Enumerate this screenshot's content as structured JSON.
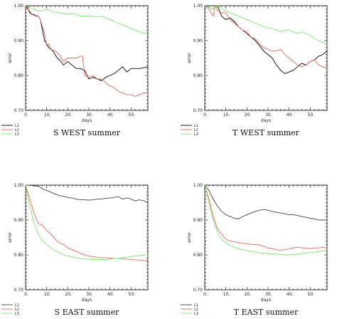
{
  "chart_data": [
    {
      "type": "line",
      "title": "S WEST summer",
      "xlabel": "days",
      "ylabel": "error",
      "xlim": [
        0,
        58
      ],
      "ylim": [
        0.7,
        1.0
      ],
      "x_ticks": [
        0,
        10,
        20,
        30,
        40,
        50
      ],
      "x_tick_labels": [
        "0.",
        "10.",
        "20.",
        "30.",
        "40.",
        "50."
      ],
      "y_ticks": [
        0.7,
        0.8,
        0.9,
        1.0
      ],
      "y_tick_labels": [
        "0.70",
        "0.80",
        "0.90",
        "1.00"
      ],
      "legend_position": "below-left",
      "series": [
        {
          "name": "L1",
          "color": "#000000",
          "x": [
            0,
            1,
            2,
            3,
            4,
            5,
            6,
            7,
            8,
            9,
            10,
            11,
            12,
            13,
            14,
            15,
            16,
            18,
            20,
            22,
            24,
            26,
            28,
            30,
            32,
            34,
            36,
            38,
            40,
            42,
            44,
            46,
            48,
            50,
            52,
            54,
            56,
            58
          ],
          "y": [
            1.0,
            0.995,
            0.98,
            0.975,
            0.975,
            0.97,
            0.97,
            0.96,
            0.93,
            0.9,
            0.89,
            0.88,
            0.875,
            0.87,
            0.86,
            0.85,
            0.845,
            0.83,
            0.84,
            0.83,
            0.82,
            0.82,
            0.815,
            0.79,
            0.795,
            0.79,
            0.785,
            0.795,
            0.8,
            0.805,
            0.815,
            0.825,
            0.81,
            0.82,
            0.82,
            0.82,
            0.822,
            0.825
          ]
        },
        {
          "name": "L2",
          "color": "#ee6655",
          "x": [
            0,
            1,
            2,
            3,
            4,
            5,
            6,
            7,
            8,
            9,
            10,
            11,
            12,
            14,
            16,
            18,
            20,
            22,
            24,
            26,
            27,
            28,
            30,
            32,
            34,
            36,
            38,
            40,
            42,
            44,
            46,
            48,
            50,
            52,
            54,
            56,
            58
          ],
          "y": [
            1.0,
            0.99,
            0.985,
            0.975,
            0.972,
            0.972,
            0.97,
            0.96,
            0.94,
            0.92,
            0.885,
            0.89,
            0.875,
            0.87,
            0.86,
            0.84,
            0.85,
            0.85,
            0.85,
            0.855,
            0.855,
            0.8,
            0.795,
            0.8,
            0.79,
            0.79,
            0.78,
            0.77,
            0.765,
            0.755,
            0.75,
            0.745,
            0.745,
            0.74,
            0.745,
            0.75,
            0.75
          ]
        },
        {
          "name": "L3",
          "color": "#77ee66",
          "x": [
            0,
            2,
            4,
            6,
            8,
            10,
            12,
            14,
            16,
            18,
            20,
            22,
            24,
            26,
            28,
            30,
            32,
            34,
            36,
            38,
            40,
            42,
            44,
            46,
            48,
            50,
            52,
            54,
            56,
            58
          ],
          "y": [
            1.0,
            0.995,
            0.99,
            0.985,
            0.985,
            0.99,
            0.985,
            0.98,
            0.98,
            0.978,
            0.975,
            0.978,
            0.975,
            0.97,
            0.97,
            0.97,
            0.97,
            0.968,
            0.97,
            0.965,
            0.96,
            0.955,
            0.95,
            0.945,
            0.94,
            0.935,
            0.93,
            0.925,
            0.92,
            0.925
          ]
        }
      ]
    },
    {
      "type": "line",
      "title": "T WEST summer",
      "xlabel": "days",
      "ylabel": "error",
      "xlim": [
        0,
        58
      ],
      "ylim": [
        0.7,
        1.0
      ],
      "x_ticks": [
        0,
        10,
        20,
        30,
        40,
        50
      ],
      "x_tick_labels": [
        "0.",
        "10.",
        "20.",
        "30.",
        "40.",
        "50."
      ],
      "y_ticks": [
        0.7,
        0.8,
        0.9,
        1.0
      ],
      "y_tick_labels": [
        "0.70",
        "0.80",
        "0.90",
        "1.00"
      ],
      "legend_position": "below-left",
      "series": [
        {
          "name": "L1",
          "color": "#000000",
          "x": [
            0,
            2,
            4,
            6,
            8,
            10,
            12,
            14,
            16,
            18,
            20,
            22,
            24,
            26,
            28,
            30,
            32,
            34,
            36,
            38,
            40,
            42,
            44,
            46,
            48,
            50,
            52,
            54,
            56,
            58
          ],
          "y": [
            1.0,
            0.995,
            0.99,
            1.0,
            0.97,
            0.96,
            0.965,
            0.955,
            0.94,
            0.93,
            0.92,
            0.91,
            0.9,
            0.885,
            0.87,
            0.86,
            0.85,
            0.83,
            0.815,
            0.805,
            0.81,
            0.815,
            0.825,
            0.835,
            0.83,
            0.84,
            0.845,
            0.855,
            0.86,
            0.87
          ]
        },
        {
          "name": "L2",
          "color": "#ee6655",
          "x": [
            0,
            2,
            4,
            5,
            6,
            8,
            10,
            12,
            14,
            16,
            18,
            20,
            22,
            24,
            26,
            28,
            30,
            32,
            34,
            36,
            38,
            40,
            42,
            44,
            46,
            48,
            50,
            52,
            54,
            56,
            58
          ],
          "y": [
            1.0,
            0.99,
            0.97,
            1.0,
            0.985,
            0.98,
            0.98,
            0.96,
            0.95,
            0.94,
            0.93,
            0.925,
            0.91,
            0.905,
            0.89,
            0.88,
            0.875,
            0.87,
            0.87,
            0.875,
            0.86,
            0.85,
            0.84,
            0.83,
            0.825,
            0.83,
            0.84,
            0.845,
            0.83,
            0.825,
            0.82
          ]
        },
        {
          "name": "L3",
          "color": "#77ee66",
          "x": [
            0,
            2,
            4,
            6,
            8,
            10,
            12,
            14,
            16,
            18,
            20,
            22,
            24,
            26,
            28,
            30,
            32,
            34,
            36,
            38,
            40,
            42,
            44,
            46,
            48,
            50,
            52,
            54,
            56,
            58
          ],
          "y": [
            1.0,
            0.995,
            0.99,
            1.0,
            0.99,
            0.985,
            0.98,
            0.975,
            0.97,
            0.965,
            0.96,
            0.955,
            0.95,
            0.945,
            0.94,
            0.935,
            0.935,
            0.93,
            0.925,
            0.93,
            0.93,
            0.925,
            0.92,
            0.925,
            0.92,
            0.915,
            0.905,
            0.9,
            0.895,
            0.89
          ]
        }
      ]
    },
    {
      "type": "line",
      "title": "S EAST summer",
      "xlabel": "days",
      "ylabel": "error",
      "xlim": [
        0,
        58
      ],
      "ylim": [
        0.7,
        1.0
      ],
      "x_ticks": [
        0,
        10,
        20,
        30,
        40,
        50
      ],
      "x_tick_labels": [
        "0.",
        "10.",
        "20.",
        "30.",
        "40.",
        "50."
      ],
      "y_ticks": [
        0.7,
        0.8,
        0.9,
        1.0
      ],
      "y_tick_labels": [
        "0.70",
        "0.80",
        "0.90",
        "1.00"
      ],
      "legend_position": "below-left",
      "series": [
        {
          "name": "L1",
          "color": "#444444",
          "x": [
            0,
            2,
            4,
            6,
            8,
            10,
            12,
            14,
            16,
            18,
            20,
            22,
            24,
            26,
            28,
            30,
            32,
            34,
            36,
            38,
            40,
            42,
            44,
            46,
            48,
            50,
            52,
            54,
            56,
            58
          ],
          "y": [
            1.0,
            1.0,
            0.998,
            0.997,
            0.99,
            0.985,
            0.98,
            0.975,
            0.97,
            0.968,
            0.965,
            0.963,
            0.96,
            0.958,
            0.958,
            0.957,
            0.958,
            0.96,
            0.96,
            0.962,
            0.963,
            0.965,
            0.967,
            0.96,
            0.963,
            0.96,
            0.955,
            0.958,
            0.955,
            0.95
          ]
        },
        {
          "name": "L2",
          "color": "#ee6655",
          "x": [
            0,
            2,
            4,
            6,
            8,
            10,
            12,
            14,
            16,
            18,
            20,
            22,
            24,
            26,
            28,
            30,
            32,
            34,
            36,
            38,
            40,
            42,
            44,
            46,
            48,
            50,
            52,
            54,
            56,
            58
          ],
          "y": [
            1.0,
            0.96,
            0.92,
            0.89,
            0.885,
            0.87,
            0.86,
            0.845,
            0.835,
            0.83,
            0.82,
            0.815,
            0.81,
            0.805,
            0.8,
            0.797,
            0.795,
            0.793,
            0.792,
            0.792,
            0.791,
            0.79,
            0.79,
            0.789,
            0.788,
            0.787,
            0.786,
            0.785,
            0.784,
            0.783
          ]
        },
        {
          "name": "L3",
          "color": "#77ee66",
          "x": [
            0,
            2,
            4,
            6,
            8,
            10,
            12,
            14,
            16,
            18,
            20,
            22,
            24,
            26,
            28,
            30,
            32,
            34,
            36,
            38,
            40,
            42,
            44,
            46,
            48,
            50,
            52,
            54,
            56,
            58
          ],
          "y": [
            1.0,
            0.94,
            0.89,
            0.86,
            0.84,
            0.83,
            0.82,
            0.812,
            0.806,
            0.8,
            0.797,
            0.795,
            0.792,
            0.79,
            0.789,
            0.788,
            0.787,
            0.787,
            0.787,
            0.787,
            0.788,
            0.79,
            0.79,
            0.792,
            0.794,
            0.795,
            0.797,
            0.798,
            0.8,
            0.8
          ]
        }
      ]
    },
    {
      "type": "line",
      "title": "T EAST summer",
      "xlabel": "days",
      "ylabel": "error",
      "xlim": [
        0,
        58
      ],
      "ylim": [
        0.7,
        1.0
      ],
      "x_ticks": [
        0,
        10,
        20,
        30,
        40,
        50
      ],
      "x_tick_labels": [
        "0.",
        "10.",
        "20.",
        "30.",
        "40.",
        "50."
      ],
      "y_ticks": [
        0.7,
        0.8,
        0.9,
        1.0
      ],
      "y_tick_labels": [
        "0.70",
        "0.80",
        "0.90",
        "1.00"
      ],
      "legend_position": "below-left",
      "series": [
        {
          "name": "L1",
          "color": "#444444",
          "x": [
            0,
            2,
            4,
            6,
            8,
            10,
            12,
            14,
            16,
            18,
            20,
            22,
            24,
            26,
            28,
            30,
            32,
            34,
            36,
            38,
            40,
            42,
            44,
            46,
            48,
            50,
            52,
            54,
            56,
            58
          ],
          "y": [
            1.0,
            0.985,
            0.96,
            0.94,
            0.925,
            0.915,
            0.91,
            0.905,
            0.903,
            0.91,
            0.915,
            0.92,
            0.925,
            0.928,
            0.93,
            0.928,
            0.925,
            0.922,
            0.92,
            0.918,
            0.915,
            0.915,
            0.913,
            0.91,
            0.908,
            0.905,
            0.903,
            0.9,
            0.9,
            0.9
          ]
        },
        {
          "name": "L2",
          "color": "#ee6655",
          "x": [
            0,
            2,
            4,
            6,
            8,
            10,
            12,
            14,
            16,
            18,
            20,
            22,
            24,
            26,
            28,
            30,
            32,
            34,
            36,
            38,
            40,
            42,
            44,
            46,
            48,
            50,
            52,
            54,
            56,
            58
          ],
          "y": [
            1.0,
            0.96,
            0.91,
            0.875,
            0.86,
            0.845,
            0.84,
            0.838,
            0.835,
            0.833,
            0.832,
            0.83,
            0.83,
            0.828,
            0.825,
            0.82,
            0.818,
            0.815,
            0.813,
            0.815,
            0.818,
            0.82,
            0.822,
            0.82,
            0.82,
            0.818,
            0.82,
            0.82,
            0.822,
            0.82
          ]
        },
        {
          "name": "L3",
          "color": "#77ee66",
          "x": [
            0,
            2,
            4,
            6,
            8,
            10,
            12,
            14,
            16,
            18,
            20,
            22,
            24,
            26,
            28,
            30,
            32,
            34,
            36,
            38,
            40,
            42,
            44,
            46,
            48,
            50,
            52,
            54,
            56,
            58
          ],
          "y": [
            1.0,
            0.95,
            0.9,
            0.865,
            0.845,
            0.835,
            0.828,
            0.822,
            0.818,
            0.815,
            0.812,
            0.81,
            0.808,
            0.806,
            0.805,
            0.804,
            0.803,
            0.802,
            0.801,
            0.8,
            0.8,
            0.801,
            0.802,
            0.804,
            0.805,
            0.807,
            0.808,
            0.81,
            0.812,
            0.814
          ]
        }
      ]
    }
  ]
}
